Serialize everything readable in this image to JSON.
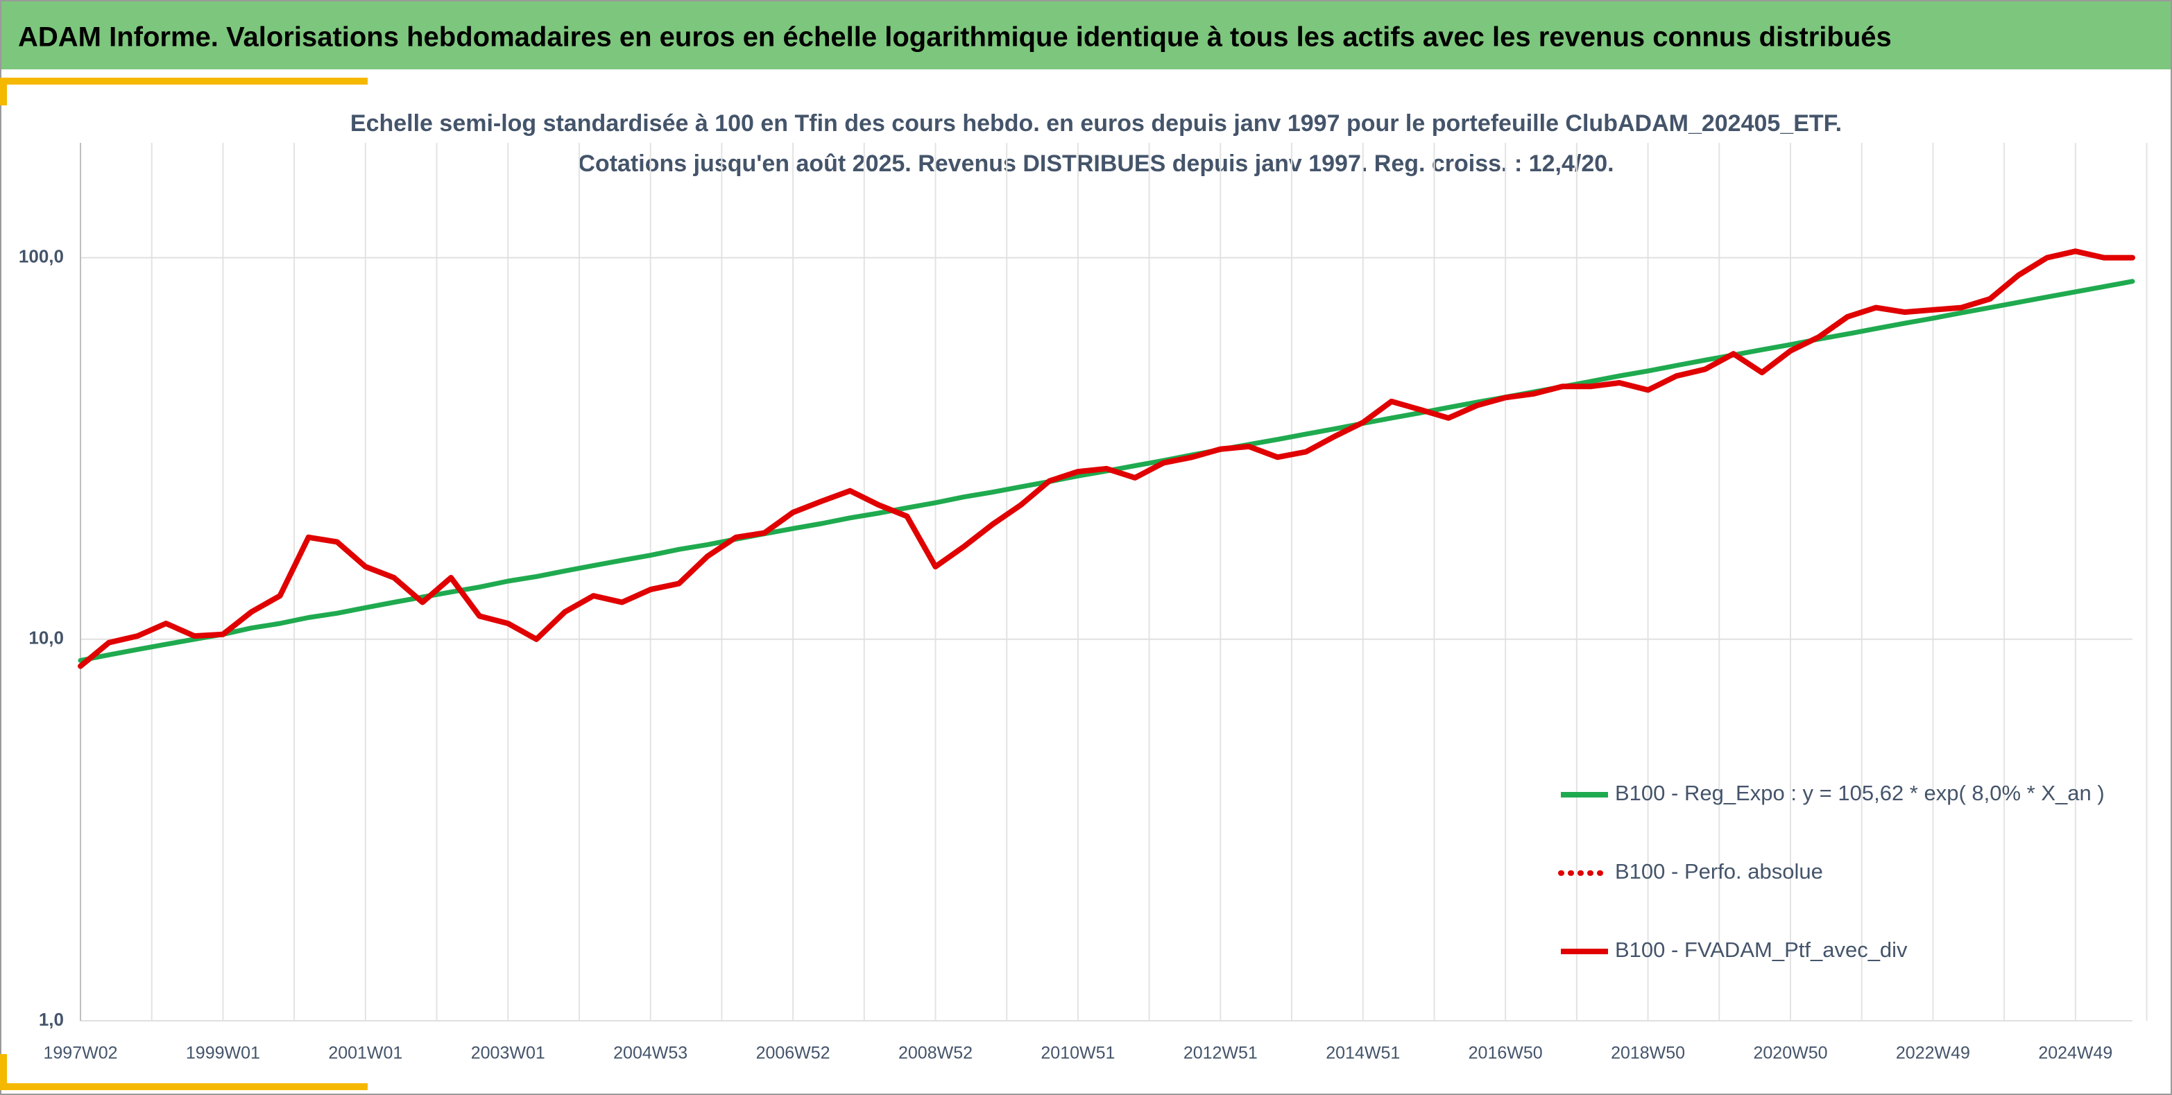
{
  "header": {
    "title": "ADAM Informe. Valorisations hebdomadaires en euros en échelle logarithmique identique à tous les actifs avec les revenus connus distribués"
  },
  "chart_data": {
    "type": "line",
    "subtitle": [
      "Echelle semi-log standardisée à 100 en Tfin des cours hebdo. en euros depuis janv 1997 pour le portefeuille ClubADAM_202405_ETF.",
      "Cotations jusqu'en août 2025. Revenus DISTRIBUES depuis janv 1997. Reg. croiss. : 12,4/20."
    ],
    "categories": [
      "1997W02",
      null,
      null,
      null,
      null,
      "1999W01",
      null,
      null,
      null,
      null,
      "2001W01",
      null,
      null,
      null,
      null,
      "2003W01",
      null,
      null,
      null,
      null,
      "2004W53",
      null,
      null,
      null,
      null,
      "2006W52",
      null,
      null,
      null,
      null,
      "2008W52",
      null,
      null,
      null,
      null,
      "2010W51",
      null,
      null,
      null,
      null,
      "2012W51",
      null,
      null,
      null,
      null,
      "2014W51",
      null,
      null,
      null,
      null,
      "2016W50",
      null,
      null,
      null,
      null,
      "2018W50",
      null,
      null,
      null,
      null,
      "2020W50",
      null,
      null,
      null,
      null,
      "2022W49",
      null,
      null,
      null,
      null,
      "2024W49",
      null,
      null
    ],
    "series": [
      {
        "name": "B100 - Reg_Expo : y = 105,62 * exp( 8,0% *  X_an )",
        "color": "#1faa4f",
        "line_style": "solid",
        "values": [
          8.8,
          9.1,
          9.4,
          9.7,
          10.0,
          10.3,
          10.7,
          11.0,
          11.4,
          11.7,
          12.1,
          12.5,
          12.9,
          13.3,
          13.7,
          14.2,
          14.6,
          15.1,
          15.6,
          16.1,
          16.6,
          17.2,
          17.7,
          18.3,
          18.9,
          19.5,
          20.1,
          20.8,
          21.4,
          22.1,
          22.8,
          23.6,
          24.3,
          25.1,
          25.9,
          26.8,
          27.6,
          28.5,
          29.4,
          30.4,
          31.4,
          32.4,
          33.4,
          34.5,
          35.6,
          36.8,
          38.0,
          39.2,
          40.5,
          41.8,
          43.1,
          44.5,
          45.9,
          47.4,
          49.0,
          50.5,
          52.2,
          53.9,
          55.6,
          57.4,
          59.2,
          61.2,
          63.1,
          65.2,
          67.3,
          69.4,
          71.7,
          74.0,
          76.4,
          78.9,
          81.4,
          84.0,
          86.7
        ]
      },
      {
        "name": "B100 - Perfo. absolue",
        "color": "#e00000",
        "line_style": "dotted",
        "values": [
          null,
          null,
          null,
          null,
          null,
          null,
          null,
          null,
          null,
          null,
          null,
          null,
          null,
          null,
          null,
          null,
          null,
          null,
          null,
          null,
          null,
          null,
          null,
          null,
          null,
          null,
          null,
          null,
          null,
          null,
          null,
          null,
          null,
          null,
          null,
          null,
          null,
          null,
          null,
          null,
          null,
          null,
          null,
          null,
          null,
          null,
          null,
          null,
          null,
          null,
          null,
          null,
          null,
          null,
          null,
          null,
          null,
          null,
          null,
          null,
          null,
          null,
          null,
          null,
          null,
          null,
          null,
          null,
          null,
          null,
          null,
          null,
          null
        ]
      },
      {
        "name": "B100 - FVADAM_Ptf_avec_div",
        "color": "#e00000",
        "line_style": "solid",
        "values": [
          8.5,
          9.8,
          10.2,
          11.0,
          10.2,
          10.3,
          11.8,
          13.0,
          18.5,
          18.0,
          15.5,
          14.5,
          12.5,
          14.5,
          11.5,
          11.0,
          10.0,
          11.8,
          13.0,
          12.5,
          13.5,
          14.0,
          16.5,
          18.5,
          19.0,
          21.5,
          23.0,
          24.5,
          22.5,
          21.0,
          15.5,
          17.5,
          20.0,
          22.5,
          26.0,
          27.5,
          28.0,
          26.5,
          29.0,
          30.0,
          31.5,
          32.0,
          30.0,
          31.0,
          34.0,
          37.0,
          42.0,
          40.0,
          38.0,
          41.0,
          43.0,
          44.0,
          46.0,
          46.0,
          47.0,
          45.0,
          49.0,
          51.0,
          56.0,
          50.0,
          57.0,
          62.0,
          70.0,
          74.0,
          72.0,
          73.0,
          74.0,
          78.0,
          90.0,
          100.0,
          104.0,
          100.0,
          100.0
        ]
      }
    ],
    "log_scale": true,
    "ylim": [
      1,
      200
    ],
    "yticks": [
      {
        "value": 1,
        "label": "1,0"
      },
      {
        "value": 10,
        "label": "10,0"
      },
      {
        "value": 100,
        "label": "100,0"
      }
    ],
    "grid": true,
    "legend": "right"
  }
}
